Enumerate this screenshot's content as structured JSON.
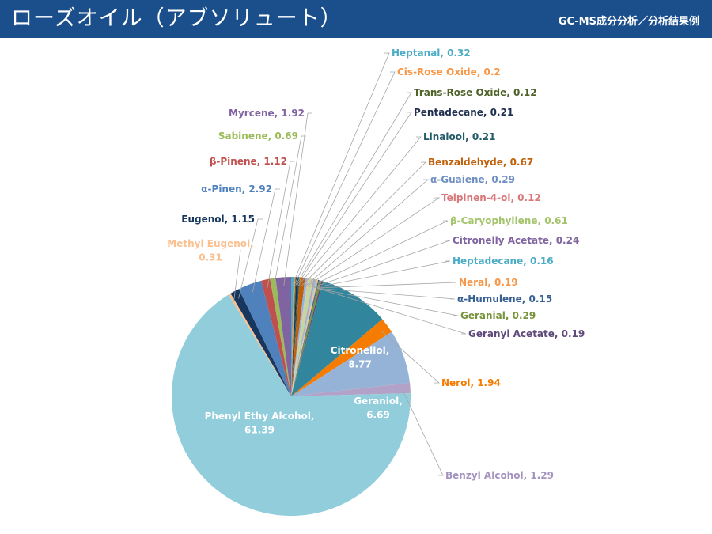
{
  "header": {
    "title": "ローズオイル（アブソリュート）",
    "subtitle": "GC-MS成分分析／分析結果例"
  },
  "colors": {
    "header_bg": "#1b4f8c",
    "leader_line": "#a6a6a6"
  },
  "chart_data": {
    "type": "pie",
    "title": "",
    "start_angle_deg": 0,
    "direction": "clockwise",
    "slices": [
      {
        "name": "Heptanal",
        "value": 0.32,
        "color": "#4bacc6",
        "label_color": "#4bacc6",
        "label": "Heptanal, 0.32"
      },
      {
        "name": "Cis-Rose Oxide",
        "value": 0.2,
        "color": "#f79646",
        "label_color": "#f79646",
        "label": "Cis-Rose Oxide, 0.2"
      },
      {
        "name": "Trans-Rose Oxide",
        "value": 0.12,
        "color": "#4f6228",
        "label_color": "#4f6228",
        "label": "Trans-Rose Oxide, 0.12"
      },
      {
        "name": "Pentadecane",
        "value": 0.21,
        "color": "#1f2f4f",
        "label_color": "#1f2f4f",
        "label": "Pentadecane, 0.21"
      },
      {
        "name": "Linalool",
        "value": 0.21,
        "color": "#215968",
        "label_color": "#215968",
        "label": "Linalool, 0.21"
      },
      {
        "name": "Benzaldehyde",
        "value": 0.67,
        "color": "#c0600a",
        "label_color": "#c0600a",
        "label": "Benzaldehyde, 0.67"
      },
      {
        "name": "α-Guaiene",
        "value": 0.29,
        "color": "#8eb4e3",
        "label_color": "#6f8fc4",
        "label": "α-Guaiene, 0.29"
      },
      {
        "name": "Telpinen-4-ol",
        "value": 0.12,
        "color": "#e6b9b8",
        "label_color": "#d9787a",
        "label": "Telpinen-4-ol, 0.12"
      },
      {
        "name": "β-Caryophyllene",
        "value": 0.61,
        "color": "#c3d69b",
        "label_color": "#a3c46b",
        "label": "β-Caryophyllene, 0.61"
      },
      {
        "name": "Citronelly Acetate",
        "value": 0.24,
        "color": "#b3a2c7",
        "label_color": "#8064a2",
        "label": "Citronelly Acetate, 0.24"
      },
      {
        "name": "Heptadecane",
        "value": 0.16,
        "color": "#93cddd",
        "label_color": "#4bacc6",
        "label": "Heptadecane, 0.16"
      },
      {
        "name": "Neral",
        "value": 0.19,
        "color": "#fac090",
        "label_color": "#f79646",
        "label": "Neral, 0.19"
      },
      {
        "name": "α-Humulene",
        "value": 0.15,
        "color": "#376092",
        "label_color": "#376092",
        "label": "α-Humulene, 0.15"
      },
      {
        "name": "Geranial",
        "value": 0.29,
        "color": "#77933c",
        "label_color": "#77933c",
        "label": "Geranial, 0.29"
      },
      {
        "name": "Geranyl Acetate",
        "value": 0.19,
        "color": "#604a7b",
        "label_color": "#604a7b",
        "label": "Geranyl Acetate, 0.19"
      },
      {
        "name": "Citronellol",
        "value": 8.77,
        "color": "#31859c",
        "label_color": "#ffffff",
        "label_lines": [
          "Citronellol,",
          "8.77"
        ],
        "label_inside": true
      },
      {
        "name": "Nerol",
        "value": 1.94,
        "color": "#f57c00",
        "label_color": "#f57c00",
        "label": "Nerol, 1.94"
      },
      {
        "name": "Geraniol",
        "value": 6.69,
        "color": "#95b3d7",
        "label_color": "#ffffff",
        "label_lines": [
          "Geraniol,",
          "6.69"
        ],
        "label_inside": true
      },
      {
        "name": "Benzyl Alcohol",
        "value": 1.29,
        "color": "#b3a2c7",
        "label_color": "#a393be",
        "label": "Benzyl Alcohol, 1.29"
      },
      {
        "name": "Phenyl Ethy Alcohol",
        "value": 61.39,
        "color": "#92cddc",
        "label_color": "#ffffff",
        "label_lines": [
          "Phenyl Ethy Alcohol,",
          "61.39"
        ],
        "label_inside": true
      },
      {
        "name": "Methyl Eugenol",
        "value": 0.31,
        "color": "#fac090",
        "label_color": "#fac090",
        "label_lines": [
          "Methyl Eugenol,",
          "0.31"
        ]
      },
      {
        "name": "Eugenol",
        "value": 1.15,
        "color": "#17375e",
        "label_color": "#17375e",
        "label": "Eugenol, 1.15"
      },
      {
        "name": "α-Pinen",
        "value": 2.92,
        "color": "#4f81bd",
        "label_color": "#4f81bd",
        "label": "α-Pinen, 2.92"
      },
      {
        "name": "β-Pinene",
        "value": 1.12,
        "color": "#c0504d",
        "label_color": "#c0504d",
        "label": "β-Pinene, 1.12"
      },
      {
        "name": "Sabinene",
        "value": 0.69,
        "color": "#9bbb59",
        "label_color": "#9bbb59",
        "label": "Sabinene, 0.69"
      },
      {
        "name": "Myrcene",
        "value": 1.92,
        "color": "#8064a2",
        "label_color": "#8064a2",
        "label": "Myrcene, 1.92"
      }
    ]
  }
}
